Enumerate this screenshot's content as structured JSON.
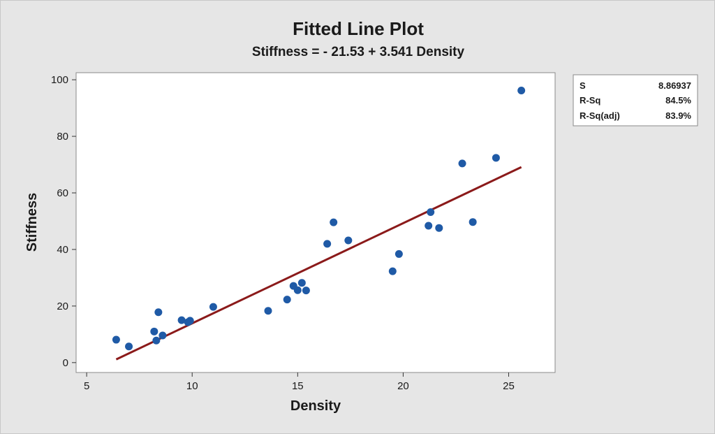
{
  "chart_data": {
    "type": "scatter",
    "title": "Fitted Line Plot",
    "subtitle": "Stiffness = - 21.53 + 3.541 Density",
    "xlabel": "Density",
    "ylabel": "Stiffness",
    "xlim": [
      4.5,
      27.2
    ],
    "ylim": [
      -3.5,
      102.5
    ],
    "xticks": [
      5,
      10,
      15,
      20,
      25
    ],
    "yticks": [
      0,
      20,
      40,
      60,
      80,
      100
    ],
    "points": [
      {
        "x": 6.4,
        "y": 8.1
      },
      {
        "x": 7.0,
        "y": 5.7
      },
      {
        "x": 8.2,
        "y": 11.0
      },
      {
        "x": 8.3,
        "y": 7.8
      },
      {
        "x": 8.4,
        "y": 17.8
      },
      {
        "x": 8.6,
        "y": 9.6
      },
      {
        "x": 9.5,
        "y": 15.0
      },
      {
        "x": 9.8,
        "y": 14.3
      },
      {
        "x": 9.9,
        "y": 14.8
      },
      {
        "x": 11.0,
        "y": 19.7
      },
      {
        "x": 13.6,
        "y": 18.3
      },
      {
        "x": 14.5,
        "y": 22.3
      },
      {
        "x": 14.8,
        "y": 27.1
      },
      {
        "x": 15.0,
        "y": 25.6
      },
      {
        "x": 15.2,
        "y": 28.2
      },
      {
        "x": 15.4,
        "y": 25.5
      },
      {
        "x": 16.4,
        "y": 42.0
      },
      {
        "x": 16.7,
        "y": 49.6
      },
      {
        "x": 17.4,
        "y": 43.2
      },
      {
        "x": 19.5,
        "y": 32.3
      },
      {
        "x": 19.8,
        "y": 38.4
      },
      {
        "x": 21.2,
        "y": 48.4
      },
      {
        "x": 21.3,
        "y": 53.2
      },
      {
        "x": 21.7,
        "y": 47.6
      },
      {
        "x": 22.8,
        "y": 70.4
      },
      {
        "x": 23.3,
        "y": 49.7
      },
      {
        "x": 24.4,
        "y": 72.4
      },
      {
        "x": 25.6,
        "y": 96.2
      }
    ],
    "fit_line": {
      "intercept": -21.53,
      "slope": 3.541,
      "x_start": 6.4,
      "x_end": 25.6
    }
  },
  "stats": [
    {
      "label": "S",
      "value": "8.86937"
    },
    {
      "label": "R-Sq",
      "value": "84.5%"
    },
    {
      "label": "R-Sq(adj)",
      "value": "83.9%"
    }
  ],
  "colors": {
    "background": "#e6e6e6",
    "plot_area": "#ffffff",
    "points": "#1f5aa6",
    "fit_line": "#8b1a1a",
    "text": "#1a1a1a"
  }
}
